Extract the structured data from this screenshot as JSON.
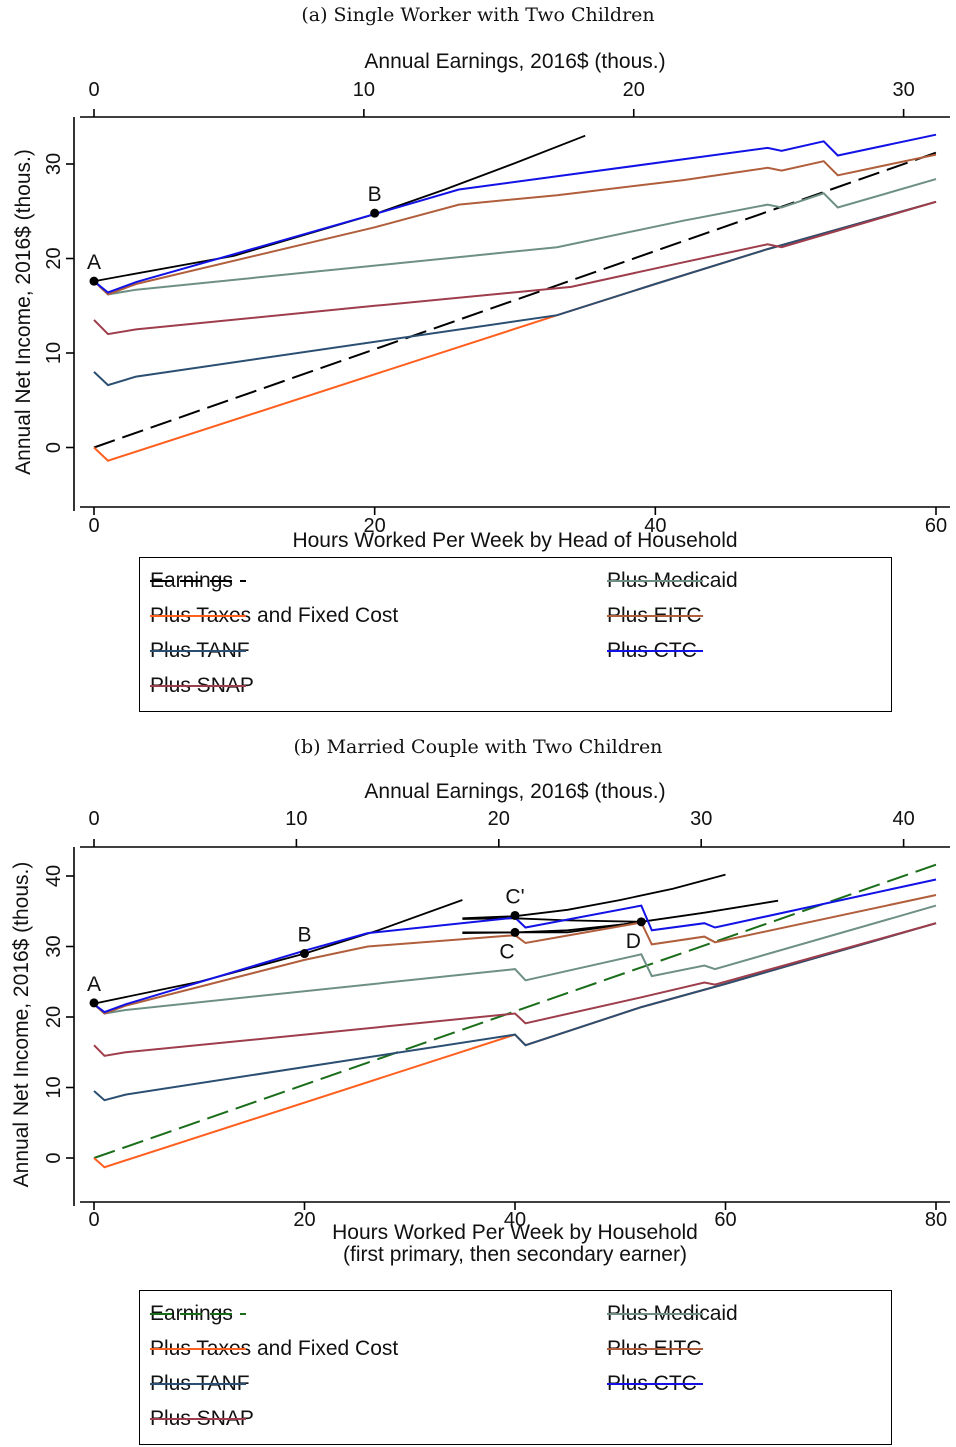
{
  "chart_data": [
    {
      "type": "line",
      "title": "(a) Single Worker with Two Children",
      "xlabel": "Hours Worked Per Week by Head of Household",
      "xlabel2": "",
      "ylabel": "Annual Net Income, 2016$ (thous.)",
      "top_axis_label": "Annual Earnings, 2016$ (thous.)",
      "xlim": [
        0,
        60
      ],
      "ylim": [
        -2,
        35
      ],
      "xticks": [
        "0",
        "20",
        "40",
        "60"
      ],
      "yticks": [
        "0",
        "10",
        "20",
        "30"
      ],
      "top_ticks": [
        "0",
        "10",
        "20",
        "30"
      ],
      "top_max": 31.2,
      "series": [
        {
          "name": "Earnings",
          "color": "#000000",
          "dash": "dashed",
          "x": [
            0,
            60
          ],
          "y": [
            0,
            31.2
          ]
        },
        {
          "name": "Plus Taxes and Fixed Cost",
          "color": "#ff5f1f",
          "dash": "solid",
          "x": [
            0,
            1,
            33,
            40,
            48,
            60
          ],
          "y": [
            0,
            -1.4,
            14,
            17.3,
            21,
            26
          ]
        },
        {
          "name": "Plus TANF",
          "color": "#2b4f72",
          "dash": "solid",
          "x": [
            0,
            1,
            3,
            33,
            40,
            48,
            60
          ],
          "y": [
            8,
            6.6,
            7.5,
            14,
            17.3,
            21,
            26
          ]
        },
        {
          "name": "Plus SNAP",
          "color": "#9e3d4c",
          "dash": "solid",
          "x": [
            0,
            1,
            3,
            20,
            34,
            42,
            48,
            49,
            60
          ],
          "y": [
            13.5,
            12,
            12.5,
            15,
            17,
            19.6,
            21.5,
            21.2,
            26
          ]
        },
        {
          "name": "Plus Medicaid",
          "color": "#6e9084",
          "dash": "solid",
          "x": [
            0,
            1,
            3,
            33,
            42,
            48,
            49,
            52,
            53,
            60
          ],
          "y": [
            17.6,
            16.2,
            16.7,
            21.2,
            24,
            25.7,
            25.4,
            26.9,
            25.4,
            28.4
          ]
        },
        {
          "name": "Plus EITC",
          "color": "#b05e3b",
          "dash": "solid",
          "x": [
            0,
            1,
            3,
            20,
            26,
            33,
            42,
            48,
            49,
            52,
            53,
            60
          ],
          "y": [
            17.6,
            16.2,
            17.3,
            23.3,
            25.7,
            26.7,
            28.3,
            29.6,
            29.3,
            30.3,
            28.8,
            31
          ]
        },
        {
          "name": "Plus CTC",
          "color": "#1212e6",
          "dash": "solid",
          "x": [
            0,
            1,
            3,
            20,
            26,
            33,
            42,
            48,
            49,
            52,
            53,
            60
          ],
          "y": [
            17.6,
            16.4,
            17.5,
            24.7,
            27.3,
            28.7,
            30.5,
            31.7,
            31.4,
            32.4,
            30.9,
            33.1
          ]
        }
      ],
      "curves": [
        {
          "x": [
            0,
            10,
            20,
            25,
            30,
            35
          ],
          "y": [
            17.6,
            20.3,
            24.7,
            27.3,
            30.1,
            33.0
          ]
        }
      ],
      "points": [
        {
          "label": "A",
          "x": 0,
          "y": 17.6
        },
        {
          "label": "B",
          "x": 20,
          "y": 24.8
        }
      ],
      "legend": {
        "left": [
          "Earnings",
          "Plus Taxes and Fixed Cost",
          "Plus TANF",
          "Plus SNAP"
        ],
        "right": [
          "Plus Medicaid",
          "Plus EITC",
          "Plus CTC"
        ]
      }
    },
    {
      "type": "line",
      "title": "(b) Married Couple with Two Children",
      "xlabel": "Hours Worked Per Week by Household",
      "xlabel2": "(first primary, then secondary earner)",
      "ylabel": "Annual Net Income, 2016$ (thous.)",
      "top_axis_label": "Annual Earnings, 2016$ (thous.)",
      "xlim": [
        0,
        80
      ],
      "ylim": [
        -2.5,
        44.3
      ],
      "xticks": [
        "0",
        "20",
        "40",
        "60",
        "80"
      ],
      "yticks": [
        "0",
        "10",
        "20",
        "30",
        "40"
      ],
      "top_ticks": [
        "0",
        "10",
        "20",
        "30",
        "40"
      ],
      "top_max": 41.6,
      "series": [
        {
          "name": "Earnings",
          "color": "#1a6e1a",
          "dash": "dashed",
          "x": [
            0,
            80
          ],
          "y": [
            0,
            41.6
          ]
        },
        {
          "name": "Plus Taxes and Fixed Cost",
          "color": "#ff5f1f",
          "dash": "solid",
          "x": [
            0,
            1,
            40,
            41,
            52,
            60,
            80
          ],
          "y": [
            0,
            -1.3,
            17.5,
            16,
            21.4,
            24.7,
            33.3
          ]
        },
        {
          "name": "Plus TANF",
          "color": "#2b4f72",
          "dash": "solid",
          "x": [
            0,
            1,
            3,
            40,
            41,
            52,
            60,
            80
          ],
          "y": [
            9.5,
            8.2,
            9,
            17.5,
            16,
            21.4,
            24.7,
            33.3
          ]
        },
        {
          "name": "Plus SNAP",
          "color": "#9e3d4c",
          "dash": "solid",
          "x": [
            0,
            1,
            3,
            20,
            40,
            41,
            52,
            58,
            59,
            80
          ],
          "y": [
            16,
            14.5,
            15,
            17.5,
            20.5,
            19.1,
            22.8,
            24.9,
            24.6,
            33.3
          ]
        },
        {
          "name": "Plus Medicaid",
          "color": "#6e9084",
          "dash": "solid",
          "x": [
            0,
            1,
            3,
            40,
            41,
            52,
            53,
            58,
            59,
            80
          ],
          "y": [
            21.8,
            20.5,
            21,
            26.8,
            25.2,
            28.9,
            25.8,
            27.3,
            26.8,
            35.8
          ]
        },
        {
          "name": "Plus EITC",
          "color": "#b05e3b",
          "dash": "solid",
          "x": [
            0,
            1,
            3,
            20,
            26,
            40,
            41,
            52,
            53,
            58,
            59,
            80
          ],
          "y": [
            21.8,
            20.5,
            21.6,
            28.1,
            30,
            31.6,
            30.5,
            33.4,
            30.3,
            31.4,
            30.6,
            37.3
          ]
        },
        {
          "name": "Plus CTC",
          "color": "#1212e6",
          "dash": "solid",
          "x": [
            0,
            1,
            3,
            20,
            26,
            40,
            41,
            52,
            53,
            58,
            59,
            80
          ],
          "y": [
            21.8,
            20.7,
            21.8,
            29.4,
            31.9,
            34.1,
            32.7,
            35.8,
            32.3,
            33.3,
            32.7,
            39.5
          ]
        }
      ],
      "curves": [
        {
          "x": [
            0,
            10,
            20,
            27,
            35
          ],
          "y": [
            21.9,
            25,
            29,
            32.3,
            36.6
          ]
        },
        {
          "x": [
            35,
            40,
            45,
            50,
            55,
            60
          ],
          "y": [
            34,
            34.3,
            35.2,
            36.6,
            38.2,
            40.2
          ]
        },
        {
          "x": [
            35,
            45,
            52,
            58,
            65
          ],
          "y": [
            32,
            32,
            33.5,
            34.8,
            36.5
          ]
        },
        {
          "x": [
            35,
            40,
            45,
            52
          ],
          "y": [
            33.9,
            34,
            33.7,
            33.5
          ]
        },
        {
          "x": [
            35,
            40,
            45,
            52
          ],
          "y": [
            31.9,
            32,
            32.3,
            33.4
          ]
        }
      ],
      "points": [
        {
          "label": "A",
          "x": 0,
          "y": 22
        },
        {
          "label": "B",
          "x": 20,
          "y": 29
        },
        {
          "label": "C'",
          "x": 40,
          "y": 34.4
        },
        {
          "label": "C",
          "x": 40,
          "y": 32
        },
        {
          "label": "D",
          "x": 52,
          "y": 33.5
        }
      ],
      "legend": {
        "left": [
          "Earnings",
          "Plus Taxes and Fixed Cost",
          "Plus TANF",
          "Plus SNAP"
        ],
        "right": [
          "Plus Medicaid",
          "Plus EITC",
          "Plus CTC"
        ]
      }
    }
  ]
}
